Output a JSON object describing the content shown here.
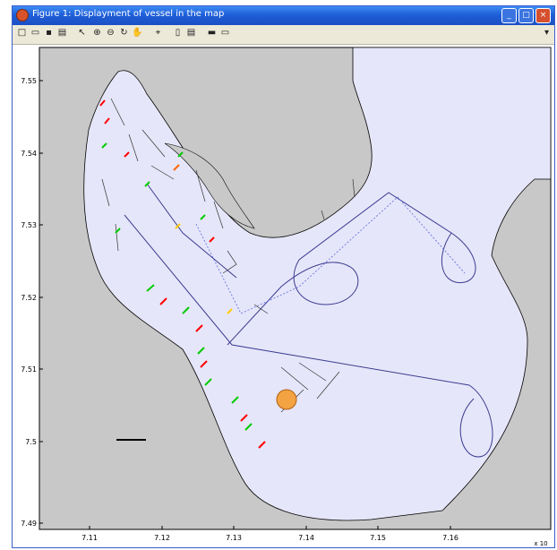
{
  "window": {
    "title": "Figure 1: Displayment of vessel in the map",
    "controls": {
      "minimize": "_",
      "maximize": "□",
      "close": "×"
    }
  },
  "toolbar": {
    "items": [
      {
        "name": "new-figure-icon",
        "glyph": "□"
      },
      {
        "name": "open-file-icon",
        "glyph": "▭"
      },
      {
        "name": "save-icon",
        "glyph": "▪"
      },
      {
        "name": "print-icon",
        "glyph": "▤"
      },
      {
        "name": "pointer-icon",
        "glyph": "↖"
      },
      {
        "name": "zoom-in-icon",
        "glyph": "⊕"
      },
      {
        "name": "zoom-out-icon",
        "glyph": "⊖"
      },
      {
        "name": "rotate-icon",
        "glyph": "↻"
      },
      {
        "name": "pan-icon",
        "glyph": "✋"
      },
      {
        "name": "data-cursor-icon",
        "glyph": "⌖"
      },
      {
        "name": "colorbar-icon",
        "glyph": "▯"
      },
      {
        "name": "legend-icon",
        "glyph": "▤"
      },
      {
        "name": "hide-tools-icon",
        "glyph": "▬"
      },
      {
        "name": "show-tools-icon",
        "glyph": "▭"
      }
    ],
    "dock_arrow": "▾"
  },
  "plot": {
    "y_ticks": [
      "7.55",
      "7.54",
      "7.53",
      "7.52",
      "7.51",
      "7.5",
      "7.49"
    ],
    "x_ticks": [
      "7.11",
      "7.12",
      "7.13",
      "7.14",
      "7.15",
      "7.16"
    ],
    "x_exponent": "x 10",
    "colors": {
      "water": "#e6e6fa",
      "land": "#c8c8c8",
      "route": "#3b3b8f",
      "vessel": "#f4a343",
      "east_marker": "#ff0000",
      "north_marker": "#00cc00"
    }
  }
}
